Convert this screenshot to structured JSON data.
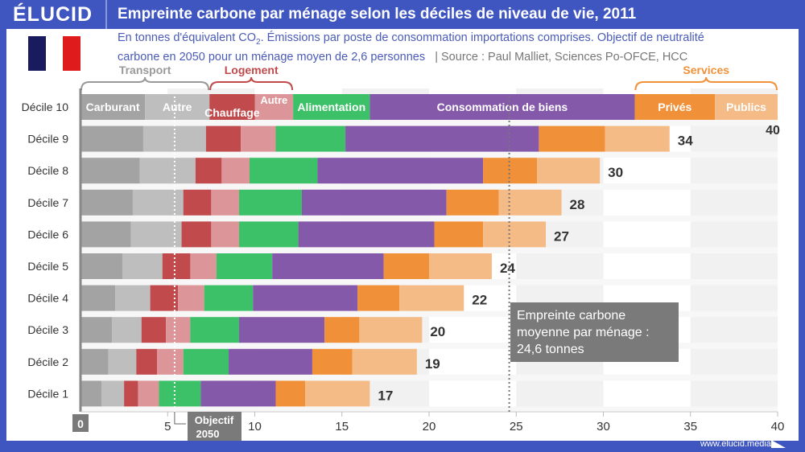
{
  "header": {
    "logo": "ÉLUCID",
    "title": "Empreinte carbone par ménage selon les déciles de niveau de vie, 2011"
  },
  "subtitle": {
    "line1_pre": "En tonnes d'équivalent CO",
    "line1_sub": "2",
    "line1_post": ". Émissions par poste de consommation importations comprises. Objectif de neutralité",
    "line2": "carbone en 2050 pour un ménage moyen de 2,6 personnes",
    "source": "|  Source : Paul Malliet, Sciences Po-OFCE, HCC"
  },
  "flag_colors": [
    "#1a1a5e",
    "#ffffff",
    "#e01b1b"
  ],
  "footer": {
    "url": "www.elucid.media"
  },
  "annotation": {
    "line1": "Empreinte carbone",
    "line2": "moyenne par ménage :",
    "line3": "24,6 tonnes"
  },
  "chart_data": {
    "type": "bar",
    "orientation": "horizontal",
    "stacked": true,
    "title": "Empreinte carbone par ménage selon les déciles de niveau de vie, 2011",
    "xlabel": "",
    "ylabel": "",
    "xlim": [
      0,
      40
    ],
    "xticks": [
      0,
      5,
      10,
      15,
      20,
      25,
      30,
      35,
      40
    ],
    "categories": [
      "Décile 10",
      "Décile 9",
      "Décile 8",
      "Décile 7",
      "Décile 6",
      "Décile 5",
      "Décile 4",
      "Décile 3",
      "Décile 2",
      "Décile 1"
    ],
    "totals_labels": [
      "40",
      "34",
      "30",
      "28",
      "27",
      "24",
      "22",
      "20",
      "19",
      "17"
    ],
    "groups": [
      {
        "name": "Transport",
        "series": [
          "Carburant",
          "Autre (transport)"
        ],
        "color": "#999999"
      },
      {
        "name": "Logement",
        "series": [
          "Chauffage",
          "Autre (logement)"
        ],
        "color": "#c04a4a"
      },
      {
        "name": "Services",
        "series": [
          "Privés",
          "Publics"
        ],
        "color": "#f0913a"
      }
    ],
    "series": [
      {
        "name": "Carburant",
        "label": "Carburant",
        "color": "#a3a3a3",
        "values": [
          3.7,
          3.6,
          3.4,
          3.0,
          2.9,
          2.4,
          2.0,
          1.8,
          1.6,
          1.2
        ]
      },
      {
        "name": "Autre (transport)",
        "label": "Autre",
        "color": "#bebebe",
        "values": [
          3.7,
          3.6,
          3.2,
          2.9,
          2.9,
          2.3,
          2.0,
          1.7,
          1.6,
          1.3
        ]
      },
      {
        "name": "Chauffage",
        "label": "Chauffage",
        "color": "#c04a4c",
        "values": [
          2.6,
          2.0,
          1.5,
          1.6,
          1.7,
          1.6,
          1.6,
          1.4,
          1.2,
          0.8
        ]
      },
      {
        "name": "Autre (logement)",
        "label": "Autre",
        "color": "#dc9598",
        "values": [
          2.2,
          2.0,
          1.6,
          1.6,
          1.6,
          1.5,
          1.5,
          1.4,
          1.5,
          1.2
        ]
      },
      {
        "name": "Alimentation",
        "label": "Alimentation",
        "color": "#3cc068",
        "values": [
          4.4,
          4.0,
          3.9,
          3.6,
          3.4,
          3.2,
          2.8,
          2.8,
          2.6,
          2.4
        ]
      },
      {
        "name": "Consommation de biens",
        "label": "Consommation de biens",
        "color": "#8559aa",
        "values": [
          15.2,
          11.1,
          9.5,
          8.3,
          7.8,
          6.4,
          6.0,
          4.9,
          4.8,
          4.3
        ]
      },
      {
        "name": "Privés",
        "label": "Privés",
        "color": "#f0913a",
        "values": [
          4.6,
          3.8,
          3.1,
          3.0,
          2.8,
          2.6,
          2.4,
          2.0,
          2.3,
          1.7
        ]
      },
      {
        "name": "Publics",
        "label": "Publics",
        "color": "#f5bb87",
        "values": [
          3.6,
          3.7,
          3.6,
          3.6,
          3.6,
          3.6,
          3.7,
          3.6,
          3.7,
          3.7
        ]
      }
    ],
    "reference_lines": [
      {
        "name": "Objectif 2050",
        "label_line1": "Objectif",
        "label_line2": "2050",
        "value": 5.4
      },
      {
        "name": "Empreinte carbone moyenne",
        "value": 24.6
      }
    ],
    "grid": true,
    "legend": "inline-top-bar"
  }
}
